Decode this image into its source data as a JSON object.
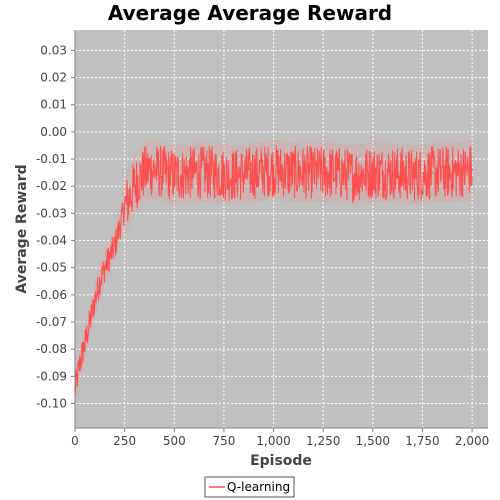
{
  "chart_data": {
    "type": "line",
    "title": "Average Average Reward",
    "xlabel": "Episode",
    "ylabel": "Average Reward",
    "xlim": [
      0,
      2080
    ],
    "ylim": [
      -0.109,
      0.0375
    ],
    "x_ticks": [
      0,
      250,
      500,
      750,
      1000,
      1250,
      1500,
      1750,
      2000
    ],
    "x_tick_labels": [
      "0",
      "250",
      "500",
      "750",
      "1,000",
      "1,250",
      "1,500",
      "1,750",
      "2,000"
    ],
    "y_ticks": [
      -0.1,
      -0.09,
      -0.08,
      -0.07,
      -0.06,
      -0.05,
      -0.04,
      -0.03,
      -0.02,
      -0.01,
      0.0,
      0.01,
      0.02,
      0.03
    ],
    "y_tick_labels": [
      "-0.10",
      "-0.09",
      "-0.08",
      "-0.07",
      "-0.06",
      "-0.05",
      "-0.04",
      "-0.03",
      "-0.02",
      "-0.01",
      "0.00",
      "0.01",
      "0.02",
      "0.03"
    ],
    "grid": true,
    "legend_position": "bottom-center",
    "plot_background": "#c0c0c0",
    "series": [
      {
        "name": "Q-learning",
        "color": "#ff5050",
        "x": [
          0,
          25,
          50,
          75,
          100,
          125,
          150,
          175,
          200,
          225,
          250,
          275,
          300,
          325,
          350,
          375,
          400,
          450,
          500,
          600,
          700,
          800,
          900,
          1000,
          1100,
          1200,
          1300,
          1400,
          1500,
          1600,
          1700,
          1800,
          1900,
          2000
        ],
        "y": [
          -0.095,
          -0.085,
          -0.078,
          -0.07,
          -0.062,
          -0.055,
          -0.05,
          -0.046,
          -0.042,
          -0.035,
          -0.028,
          -0.024,
          -0.02,
          -0.017,
          -0.015,
          -0.014,
          -0.014,
          -0.015,
          -0.016,
          -0.015,
          -0.015,
          -0.016,
          -0.015,
          -0.014,
          -0.015,
          -0.015,
          -0.015,
          -0.016,
          -0.015,
          -0.015,
          -0.016,
          -0.015,
          -0.015,
          -0.014
        ]
      }
    ]
  }
}
